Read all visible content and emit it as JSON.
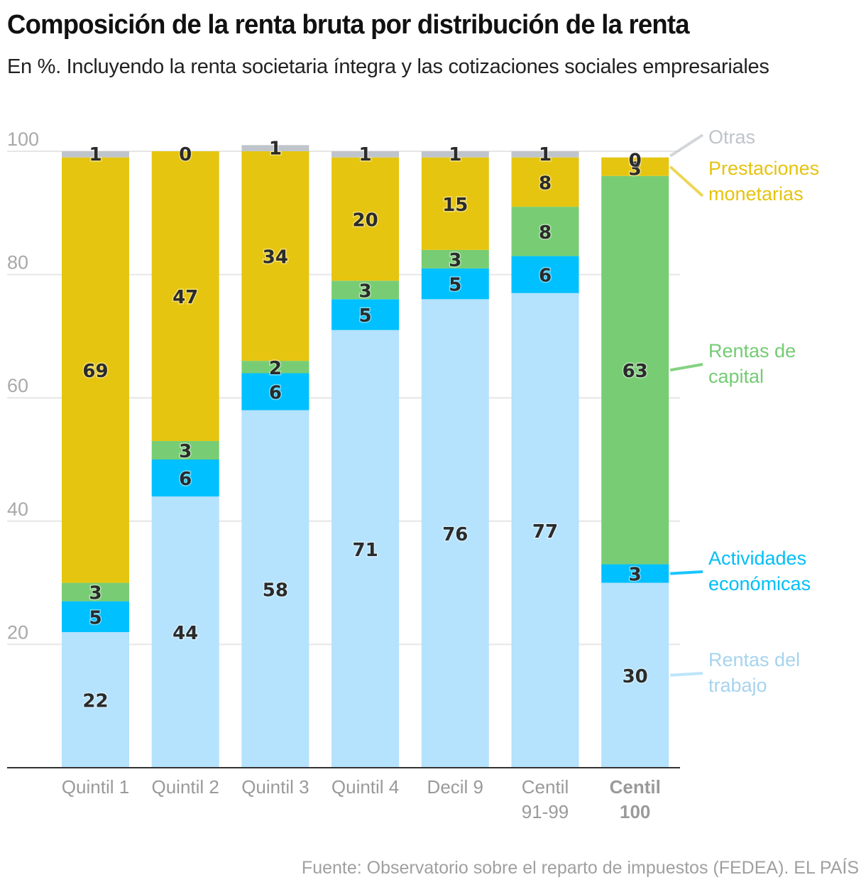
{
  "header": {
    "title": "Composición de la renta bruta por distribución de la renta",
    "subtitle": "En %. Incluyendo la renta societaria íntegra y las cotizaciones sociales empresariales"
  },
  "footer": {
    "source": "Fuente: Observatorio sobre el reparto de impuestos (FEDEA). EL PAÍS"
  },
  "chart_data": {
    "type": "bar",
    "stacked": true,
    "orientation": "vertical",
    "title": "Composición de la renta bruta por distribución de la renta",
    "subtitle": "En %. Incluyendo la renta societaria íntegra y las cotizaciones sociales empresariales",
    "xlabel": "",
    "ylabel": "",
    "ylim": [
      0,
      100
    ],
    "yticks": [
      20,
      40,
      60,
      80,
      100
    ],
    "grid": true,
    "legend_placement": "right (direct labels)",
    "categories": [
      {
        "lines": [
          "Quintil 1"
        ],
        "bold": false
      },
      {
        "lines": [
          "Quintil 2"
        ],
        "bold": false
      },
      {
        "lines": [
          "Quintil 3"
        ],
        "bold": false
      },
      {
        "lines": [
          "Quintil 4"
        ],
        "bold": false
      },
      {
        "lines": [
          "Decil 9"
        ],
        "bold": false
      },
      {
        "lines": [
          "Centil",
          "91-99"
        ],
        "bold": false
      },
      {
        "lines": [
          "Centil",
          "100"
        ],
        "bold": true
      }
    ],
    "series": [
      {
        "name": "Rentas del trabajo",
        "legend_lines": [
          "Rentas del",
          "trabajo"
        ],
        "color": "#b5e2fc",
        "label_color": "#a6d4ee",
        "values": [
          22,
          44,
          58,
          71,
          76,
          77,
          30
        ]
      },
      {
        "name": "Actividades económicas",
        "legend_lines": [
          "Actividades",
          "económicas"
        ],
        "color": "#00c0ff",
        "label_color": "#00bff5",
        "values": [
          5,
          6,
          6,
          5,
          5,
          6,
          3
        ]
      },
      {
        "name": "Rentas de capital",
        "legend_lines": [
          "Rentas de",
          "capital"
        ],
        "color": "#78cd74",
        "label_color": "#74cc74",
        "values": [
          3,
          3,
          2,
          3,
          3,
          8,
          63
        ]
      },
      {
        "name": "Prestaciones monetarias",
        "legend_lines": [
          "Prestaciones",
          "monetarias"
        ],
        "color": "#e6c510",
        "label_color": "#e6c30f",
        "values": [
          69,
          47,
          34,
          20,
          15,
          8,
          3
        ]
      },
      {
        "name": "Otras",
        "legend_lines": [
          "Otras"
        ],
        "color": "#c0c5cb",
        "label_color": "#bfc4ca",
        "values": [
          1,
          0,
          1,
          1,
          1,
          1,
          0
        ]
      }
    ]
  }
}
